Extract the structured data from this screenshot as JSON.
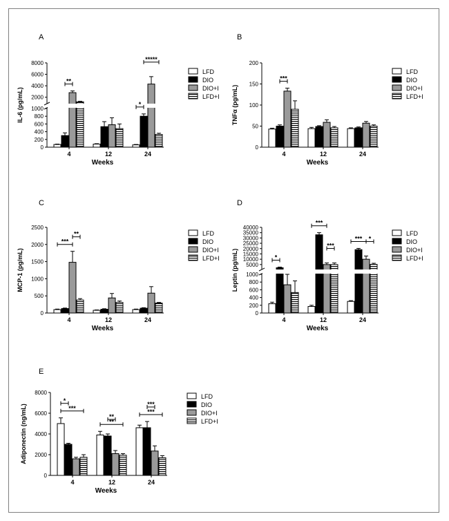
{
  "legend_labels": [
    "LFD",
    "DIO",
    "DIO+I",
    "LFD+I"
  ],
  "chart_data": [
    {
      "panel": "A",
      "type": "bar",
      "title": "",
      "ylabel": "IL-6 (pg/mL)",
      "xlabel": "Weeks",
      "categories": [
        "4",
        "12",
        "24"
      ],
      "y_axis_break": true,
      "ytick_labels_lower": [
        "0",
        "200",
        "400",
        "600",
        "800",
        "1000"
      ],
      "ytick_labels_upper": [
        "2000",
        "4000",
        "6000",
        "8000"
      ],
      "series": [
        {
          "name": "LFD",
          "values": [
            70,
            80,
            60
          ],
          "errors": [
            10,
            10,
            10
          ]
        },
        {
          "name": "DIO",
          "values": [
            300,
            530,
            800
          ],
          "errors": [
            70,
            130,
            60
          ]
        },
        {
          "name": "DIO+I",
          "values": [
            2800,
            580,
            4300
          ],
          "errors": [
            300,
            180,
            1300
          ]
        },
        {
          "name": "LFD+I",
          "values": [
            1200,
            480,
            330
          ],
          "errors": [
            100,
            120,
            30
          ]
        }
      ],
      "significance": [
        {
          "cat": 0,
          "from": 1,
          "to": 2,
          "label": "**"
        },
        {
          "cat": 2,
          "from": 0,
          "to": 1,
          "label": "*"
        },
        {
          "cat": 2,
          "from": 1,
          "to": 3,
          "label": "*****"
        }
      ]
    },
    {
      "panel": "B",
      "type": "bar",
      "title": "",
      "ylabel": "TNFα (pg/mL)",
      "xlabel": "Weeks",
      "categories": [
        "4",
        "12",
        "24"
      ],
      "ylim": [
        0,
        200
      ],
      "ytick_labels": [
        "0",
        "50",
        "100",
        "150",
        "200"
      ],
      "series": [
        {
          "name": "LFD",
          "values": [
            43,
            44,
            44
          ],
          "errors": [
            2,
            3,
            2
          ]
        },
        {
          "name": "DIO",
          "values": [
            50,
            49,
            46
          ],
          "errors": [
            3,
            2,
            2
          ]
        },
        {
          "name": "DIO+I",
          "values": [
            133,
            59,
            57
          ],
          "errors": [
            7,
            6,
            4
          ]
        },
        {
          "name": "LFD+I",
          "values": [
            90,
            46,
            50
          ],
          "errors": [
            20,
            3,
            3
          ]
        }
      ],
      "significance": [
        {
          "cat": 0,
          "from": 1,
          "to": 2,
          "label": "***"
        }
      ]
    },
    {
      "panel": "C",
      "type": "bar",
      "title": "",
      "ylabel": "MCP-1 (pg/mL)",
      "xlabel": "Weeks",
      "categories": [
        "4",
        "12",
        "24"
      ],
      "ylim": [
        0,
        2500
      ],
      "ytick_labels": [
        "0",
        "500",
        "1000",
        "1500",
        "2000",
        "2500"
      ],
      "series": [
        {
          "name": "LFD",
          "values": [
            100,
            80,
            100
          ],
          "errors": [
            15,
            10,
            15
          ]
        },
        {
          "name": "DIO",
          "values": [
            130,
            110,
            140
          ],
          "errors": [
            15,
            15,
            15
          ]
        },
        {
          "name": "DIO+I",
          "values": [
            1480,
            440,
            580
          ],
          "errors": [
            320,
            130,
            190
          ]
        },
        {
          "name": "LFD+I",
          "values": [
            380,
            310,
            290
          ],
          "errors": [
            40,
            40,
            20
          ]
        }
      ],
      "significance": [
        {
          "cat": 0,
          "from": 0,
          "to": 2,
          "label": "***"
        },
        {
          "cat": 0,
          "from": 2,
          "to": 3,
          "label": "**"
        }
      ]
    },
    {
      "panel": "D",
      "type": "bar",
      "title": "",
      "ylabel": "Leptin (pg/mL)",
      "xlabel": "Weeks",
      "categories": [
        "4",
        "12",
        "24"
      ],
      "y_axis_break": true,
      "ytick_labels_lower": [
        "0",
        "200",
        "400",
        "600",
        "800",
        "1000"
      ],
      "ytick_labels_upper": [
        "5000",
        "10000",
        "15000",
        "20000",
        "25000",
        "30000",
        "35000",
        "40000"
      ],
      "series": [
        {
          "name": "LFD",
          "values": [
            240,
            170,
            300
          ],
          "errors": [
            40,
            30,
            20
          ]
        },
        {
          "name": "DIO",
          "values": [
            2000,
            33000,
            19000
          ],
          "errors": [
            600,
            2000,
            1200
          ]
        },
        {
          "name": "DIO+I",
          "values": [
            730,
            5000,
            10000
          ],
          "errors": [
            270,
            1500,
            3000
          ]
        },
        {
          "name": "LFD+I",
          "values": [
            530,
            5000,
            5200
          ],
          "errors": [
            300,
            1500,
            1000
          ]
        }
      ],
      "significance": [
        {
          "cat": 0,
          "from": 0,
          "to": 1,
          "label": "*"
        },
        {
          "cat": 1,
          "from": 0,
          "to": 2,
          "label": "***"
        },
        {
          "cat": 1,
          "from": 2,
          "to": 3,
          "label": "***"
        },
        {
          "cat": 2,
          "from": 0,
          "to": 2,
          "label": "***"
        },
        {
          "cat": 2,
          "from": 2,
          "to": 3,
          "label": "*"
        }
      ]
    },
    {
      "panel": "E",
      "type": "bar",
      "title": "",
      "ylabel": "Adiponectin (ng/mL)",
      "xlabel": "Weeks",
      "categories": [
        "4",
        "12",
        "24"
      ],
      "ylim": [
        0,
        8000
      ],
      "ytick_labels": [
        "0",
        "2000",
        "4000",
        "6000",
        "8000"
      ],
      "series": [
        {
          "name": "LFD",
          "values": [
            5000,
            3900,
            4600
          ],
          "errors": [
            550,
            350,
            250
          ]
        },
        {
          "name": "DIO",
          "values": [
            3000,
            3800,
            4600
          ],
          "errors": [
            100,
            200,
            600
          ]
        },
        {
          "name": "DIO+I",
          "values": [
            1600,
            2100,
            2350
          ],
          "errors": [
            150,
            300,
            500
          ]
        },
        {
          "name": "LFD+I",
          "values": [
            1750,
            1950,
            1700
          ],
          "errors": [
            250,
            150,
            200
          ]
        }
      ],
      "significance": [
        {
          "cat": 0,
          "from": 0,
          "to": 3,
          "label": "***"
        },
        {
          "cat": 0,
          "from": 0,
          "to": 1,
          "label": "*"
        },
        {
          "cat": 1,
          "from": 0,
          "to": 3,
          "label": "**"
        },
        {
          "cat": 1,
          "from": 1,
          "to": 2,
          "label": "**"
        },
        {
          "cat": 2,
          "from": 0,
          "to": 3,
          "label": "***"
        },
        {
          "cat": 2,
          "from": 1,
          "to": 2,
          "label": "***"
        }
      ]
    }
  ]
}
